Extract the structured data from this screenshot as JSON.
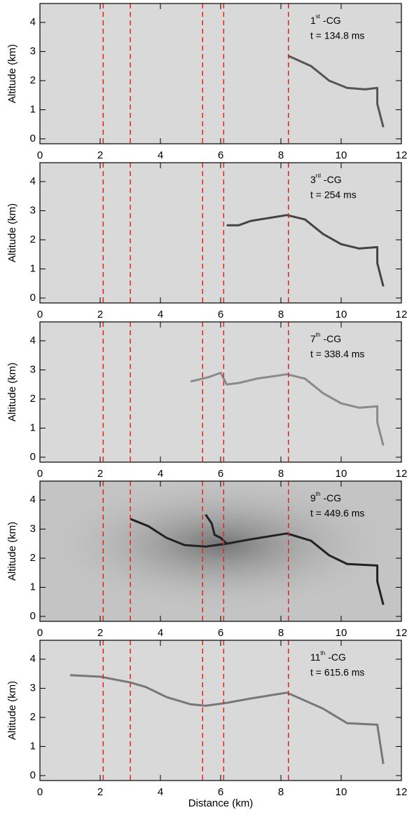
{
  "chart_data": [
    {
      "type": "line",
      "ordinal": "1",
      "ordinal_suffix": "st",
      "event": "-CG",
      "time_label": "t = 134.8 ms",
      "ylabel": "Altitude (km)",
      "xlim": [
        0,
        12
      ],
      "ylim": [
        -0.17,
        4.65
      ],
      "xticks": [
        0,
        2,
        4,
        6,
        8,
        10,
        12
      ],
      "yticks": [
        0,
        1,
        2,
        3,
        4
      ],
      "vlines": [
        2.1,
        3.0,
        5.4,
        6.1,
        8.25
      ],
      "vline_color": "#e8201c",
      "background": "#d9d9d9",
      "series": [
        {
          "color": "#555555",
          "x": [
            8.25,
            9.0,
            9.6,
            10.2,
            10.8,
            11.2,
            11.2,
            11.3,
            11.4
          ],
          "y": [
            2.85,
            2.5,
            2.0,
            1.75,
            1.7,
            1.75,
            1.2,
            0.8,
            0.4
          ]
        }
      ]
    },
    {
      "type": "line",
      "ordinal": "3",
      "ordinal_suffix": "rd",
      "event": "-CG",
      "time_label": "t = 254 ms",
      "ylabel": "Altitude (km)",
      "xlim": [
        0,
        12
      ],
      "ylim": [
        -0.17,
        4.65
      ],
      "xticks": [
        0,
        2,
        4,
        6,
        8,
        10,
        12
      ],
      "yticks": [
        0,
        1,
        2,
        3,
        4
      ],
      "vlines": [
        2.1,
        3.0,
        5.4,
        6.1,
        8.25
      ],
      "vline_color": "#e8201c",
      "background": "#d9d9d9",
      "series": [
        {
          "color": "#444444",
          "x": [
            6.2,
            6.6,
            7.0,
            7.6,
            8.2,
            8.8,
            9.4,
            10.0,
            10.6,
            11.2,
            11.2,
            11.4
          ],
          "y": [
            2.5,
            2.5,
            2.65,
            2.75,
            2.85,
            2.7,
            2.2,
            1.85,
            1.7,
            1.75,
            1.2,
            0.4
          ]
        }
      ]
    },
    {
      "type": "line",
      "ordinal": "7",
      "ordinal_suffix": "th",
      "event": "-CG",
      "time_label": "t = 338.4 ms",
      "ylabel": "Altitude (km)",
      "xlim": [
        0,
        12
      ],
      "ylim": [
        -0.17,
        4.65
      ],
      "xticks": [
        0,
        2,
        4,
        6,
        8,
        10,
        12
      ],
      "yticks": [
        0,
        1,
        2,
        3,
        4
      ],
      "vlines": [
        2.1,
        3.0,
        5.4,
        6.1,
        8.25
      ],
      "vline_color": "#e8201c",
      "background": "#d9d9d9",
      "series": [
        {
          "color": "#8a8a8a",
          "x": [
            5.0,
            5.6,
            6.0,
            6.2,
            6.6,
            7.2,
            8.2,
            8.8,
            9.4,
            10.0,
            10.6,
            11.2,
            11.2,
            11.4
          ],
          "y": [
            2.6,
            2.75,
            2.9,
            2.5,
            2.55,
            2.7,
            2.85,
            2.7,
            2.2,
            1.85,
            1.7,
            1.75,
            1.2,
            0.4
          ]
        }
      ]
    },
    {
      "type": "line",
      "ordinal": "9",
      "ordinal_suffix": "th",
      "event": "-CG",
      "time_label": "t = 449.6 ms",
      "ylabel": "Altitude (km)",
      "xlim": [
        0,
        12
      ],
      "ylim": [
        -0.17,
        4.65
      ],
      "xticks": [
        0,
        2,
        4,
        6,
        8,
        10,
        12
      ],
      "yticks": [
        0,
        1,
        2,
        3,
        4
      ],
      "vlines": [
        2.1,
        3.0,
        5.4,
        6.1,
        8.25
      ],
      "vline_color": "#e8201c",
      "background": "#c4c4c4",
      "glow": true,
      "series": [
        {
          "color": "#222222",
          "x": [
            3.0,
            3.6,
            4.2,
            4.8,
            5.5,
            6.2,
            7.0,
            8.2,
            9.0,
            9.6,
            10.2,
            11.2,
            11.2,
            11.4
          ],
          "y": [
            3.35,
            3.1,
            2.7,
            2.45,
            2.4,
            2.5,
            2.65,
            2.85,
            2.6,
            2.1,
            1.8,
            1.75,
            1.2,
            0.4
          ]
        },
        {
          "color": "#222222",
          "x": [
            5.5,
            5.7,
            5.8,
            6.0,
            6.2
          ],
          "y": [
            3.5,
            3.2,
            2.8,
            2.7,
            2.5
          ]
        }
      ]
    },
    {
      "type": "line",
      "ordinal": "11",
      "ordinal_suffix": "th",
      "event": "-CG",
      "time_label": "t = 615.6 ms",
      "ylabel": "Altitude (km)",
      "xlabel": "Distance (km)",
      "xlim": [
        0,
        12
      ],
      "ylim": [
        -0.17,
        4.65
      ],
      "xticks": [
        0,
        2,
        4,
        6,
        8,
        10,
        12
      ],
      "yticks": [
        0,
        1,
        2,
        3,
        4
      ],
      "vlines": [
        2.1,
        3.0,
        5.4,
        6.1,
        8.25
      ],
      "vline_color": "#e8201c",
      "background": "#d9d9d9",
      "series": [
        {
          "color": "#777777",
          "x": [
            1.0,
            2.0,
            3.0,
            3.5,
            4.2,
            5.0,
            5.5,
            6.2,
            7.0,
            8.2,
            9.4,
            10.2,
            11.2,
            11.4
          ],
          "y": [
            3.45,
            3.4,
            3.2,
            3.05,
            2.7,
            2.45,
            2.4,
            2.5,
            2.65,
            2.85,
            2.3,
            1.8,
            1.75,
            0.4
          ]
        }
      ]
    }
  ]
}
